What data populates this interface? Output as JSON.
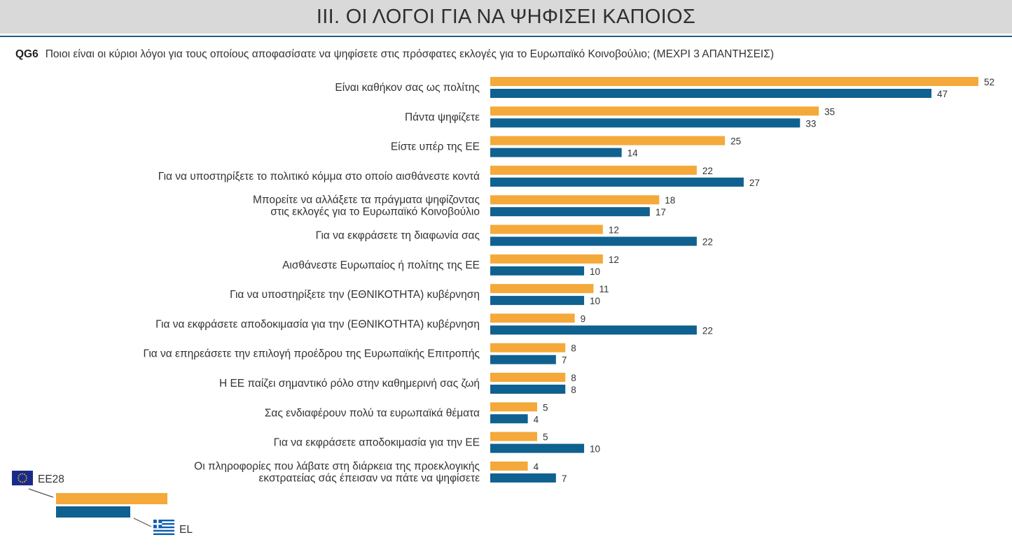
{
  "header": {
    "title": "III. ΟΙ ΛΟΓΟΙ ΓΙΑ ΝΑ ΨΗΦΙΣΕΙ ΚΑΠΟΙΟΣ"
  },
  "question": {
    "code": "QG6",
    "text": "Ποιοι είναι οι κύριοι λόγοι για τους οποίους αποφασίσατε να ψηφίσετε στις πρόσφατες εκλογές για το Ευρωπαϊκό Κοινοβούλιο; (ΜΕΧΡΙ 3 ΑΠΑΝΤΗΣΕΙΣ)"
  },
  "colors": {
    "eu28": "#f4a93a",
    "el": "#0f6190",
    "header_bg": "#d9d9d9",
    "rule": "#1f5d8a"
  },
  "chart_data": {
    "type": "bar",
    "orientation": "horizontal",
    "title": "",
    "xlabel": "",
    "ylabel": "",
    "xlim": [
      0,
      52
    ],
    "grid": false,
    "legend_position": "bottom-left",
    "categories": [
      [
        "Είναι καθήκον σας ως πολίτης"
      ],
      [
        "Πάντα ψηφίζετε"
      ],
      [
        "Είστε υπέρ της ΕΕ"
      ],
      [
        "Για να υποστηρίξετε το πολιτικό κόμμα στο οποίο αισθάνεστε κοντά"
      ],
      [
        "Μπορείτε να αλλάξετε τα πράγματα ψηφίζοντας",
        "στις εκλογές για το Ευρωπαϊκό Κοινοβούλιο"
      ],
      [
        "Για να εκφράσετε τη διαφωνία σας"
      ],
      [
        "Αισθάνεστε Ευρωπαίος ή πολίτης της ΕΕ"
      ],
      [
        "Για να υποστηρίξετε την (ΕΘΝΙΚΟΤΗΤΑ) κυβέρνηση"
      ],
      [
        "Για να εκφράσετε αποδοκιμασία για την (ΕΘΝΙΚΟΤΗΤΑ) κυβέρνηση"
      ],
      [
        "Για να επηρεάσετε την επιλογή προέδρου της Ευρωπαϊκής Επιτροπής"
      ],
      [
        "Η ΕΕ παίζει σημαντικό ρόλο στην καθημερινή σας ζωή"
      ],
      [
        "Σας ενδιαφέρουν πολύ τα ευρωπαϊκά θέματα"
      ],
      [
        "Για να εκφράσετε αποδοκιμασία για την ΕΕ"
      ],
      [
        "Οι πληροφορίες που λάβατε στη διάρκεια της προεκλογικής",
        "εκστρατείας σάς έπεισαν να πάτε να ψηφίσετε"
      ]
    ],
    "series": [
      {
        "name": "EE28",
        "color": "#f4a93a",
        "icon": "eu-flag-icon",
        "values": [
          52,
          35,
          25,
          22,
          18,
          12,
          12,
          11,
          9,
          8,
          8,
          5,
          5,
          4
        ]
      },
      {
        "name": "EL",
        "color": "#0f6190",
        "icon": "greek-flag-icon",
        "values": [
          47,
          33,
          14,
          27,
          17,
          22,
          10,
          10,
          22,
          7,
          8,
          4,
          10,
          7
        ]
      }
    ]
  }
}
